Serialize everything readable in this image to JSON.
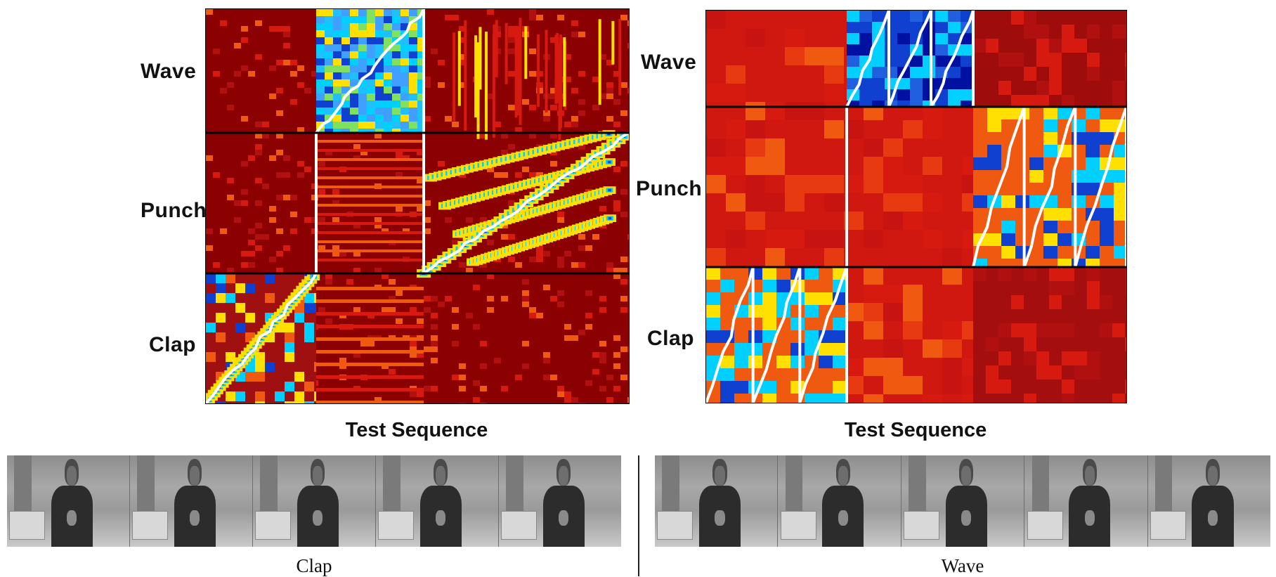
{
  "left_figure": {
    "row_labels": [
      "Wave",
      "Punch",
      "Clap"
    ],
    "xlabel": "Test Sequence",
    "caption": "Clap"
  },
  "right_figure": {
    "row_labels": [
      "Wave",
      "Punch",
      "Clap"
    ],
    "xlabel": "Test Sequence",
    "caption": "Wave"
  },
  "colors": {
    "low": "#8b0000",
    "mid_red": "#d71a10",
    "orange": "#f05a10",
    "yellow": "#ffe000",
    "cyan": "#00d0ff",
    "blue": "#1040d0",
    "dark_blue": "#0010a0",
    "path": "#ffffff",
    "border": "#000000"
  },
  "video_strips": {
    "left_frames": 5,
    "right_frames": 5
  }
}
